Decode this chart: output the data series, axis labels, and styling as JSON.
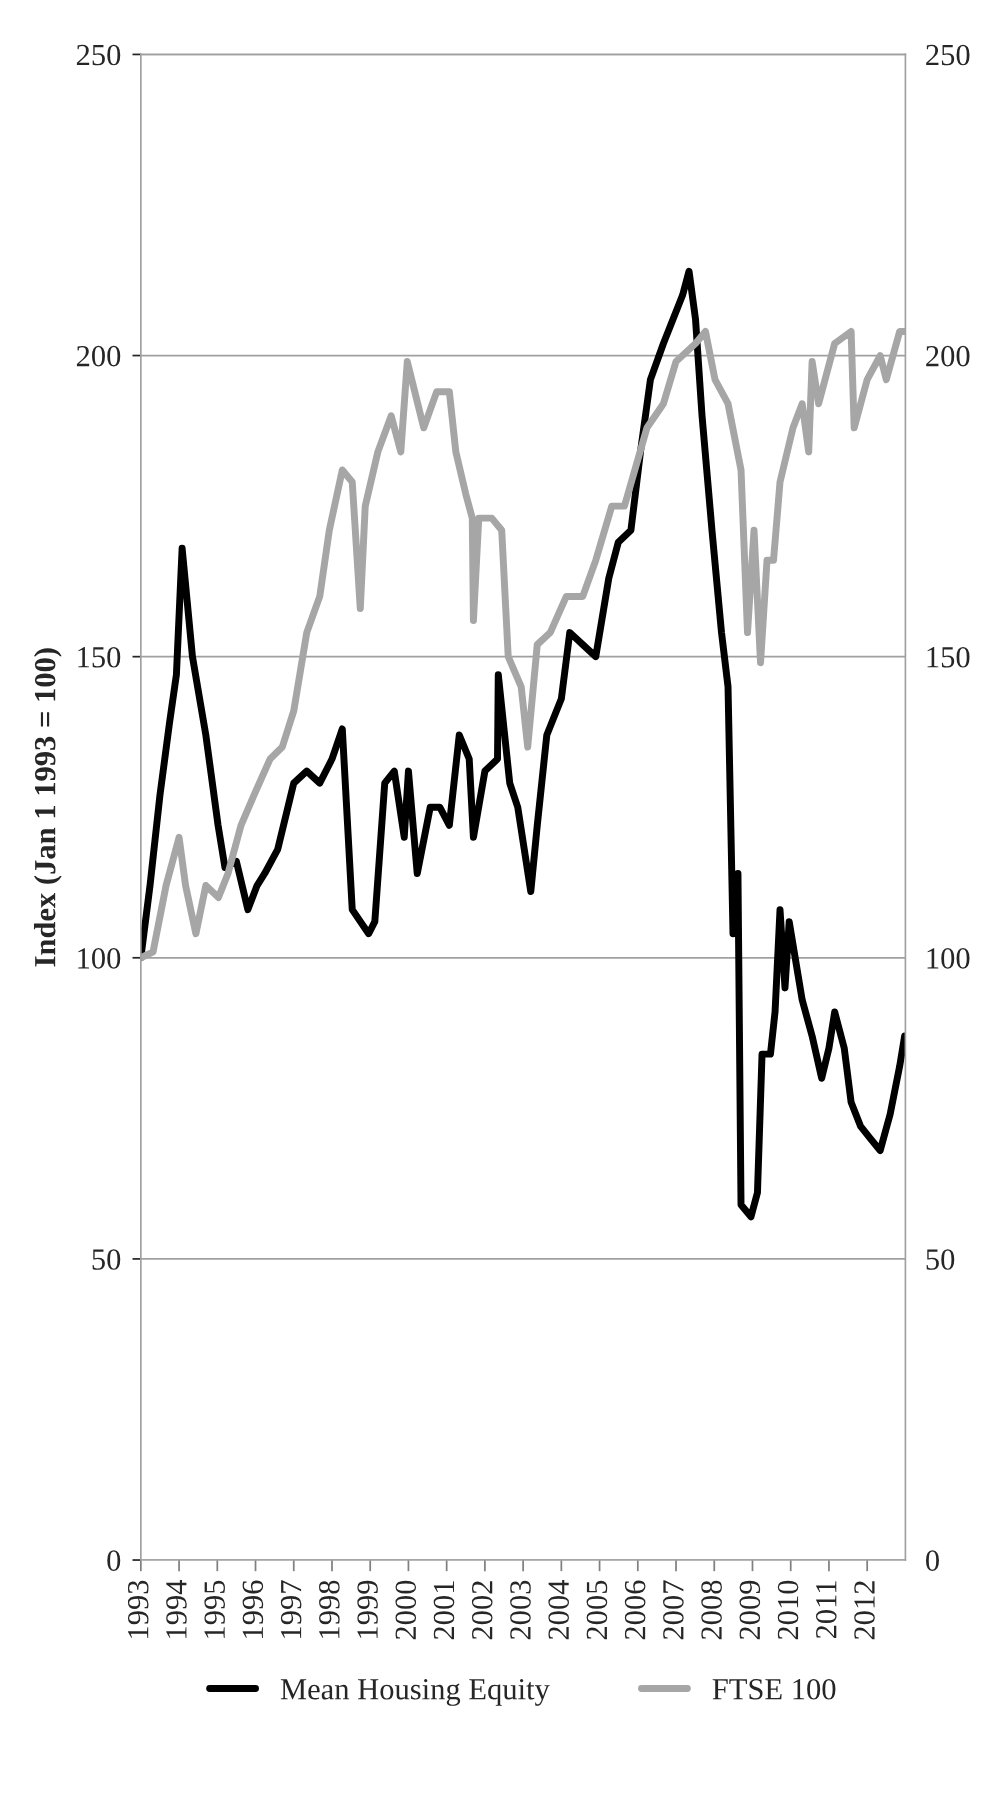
{
  "chart_data": {
    "type": "line",
    "ylabel": "Index (Jan 1 1993 = 100)",
    "xlim": [
      1993,
      2013
    ],
    "xticks": [
      1993,
      1994,
      1995,
      1996,
      1997,
      1998,
      1999,
      2000,
      2001,
      2002,
      2003,
      2004,
      2005,
      2006,
      2007,
      2008,
      2009,
      2010,
      2011,
      2012
    ],
    "ylim": [
      0,
      250
    ],
    "yticks": [
      0,
      50,
      100,
      150,
      200,
      250
    ],
    "y2lim": [
      0,
      250
    ],
    "y2ticks": [
      0,
      50,
      100,
      150,
      200,
      250
    ],
    "grid": "y",
    "legend": "bottom",
    "marker": "none",
    "line_style": "solid",
    "series": [
      {
        "name": "Mean Housing Equity",
        "color": "#000000",
        "x": [
          1993.0,
          1993.24,
          1993.5,
          1993.75,
          1993.93,
          1994.08,
          1994.35,
          1994.7,
          1995.02,
          1995.2,
          1995.5,
          1995.8,
          1996.04,
          1996.24,
          1996.58,
          1997.0,
          1997.34,
          1997.68,
          1998.0,
          1998.27,
          1998.53,
          1998.96,
          1999.12,
          1999.38,
          1999.63,
          1999.89,
          2000.0,
          2000.23,
          2000.57,
          2000.82,
          2001.07,
          2001.33,
          2001.59,
          2001.7,
          2002.0,
          2002.33,
          2002.35,
          2002.65,
          2002.86,
          2003.2,
          2003.37,
          2003.62,
          2004.0,
          2004.22,
          2004.56,
          2004.9,
          2005.24,
          2005.49,
          2005.82,
          2006.07,
          2006.33,
          2006.67,
          2007.17,
          2007.34,
          2007.51,
          2007.68,
          2007.94,
          2008.19,
          2008.36,
          2008.49,
          2008.62,
          2008.7,
          2008.96,
          2009.13,
          2009.25,
          2009.47,
          2009.59,
          2009.72,
          2009.85,
          2009.96,
          2010.3,
          2010.56,
          2010.81,
          2011.0,
          2011.15,
          2011.4,
          2011.58,
          2011.83,
          2012.08,
          2012.34,
          2012.6,
          2012.85,
          2012.98
        ],
        "values": [
          100,
          112,
          127,
          139,
          147,
          168,
          150,
          137,
          122,
          115,
          116,
          108,
          112,
          114,
          118,
          129,
          131,
          129,
          133,
          138,
          108,
          104,
          106,
          129,
          131,
          120,
          131,
          114,
          125,
          125,
          122,
          137,
          133,
          120,
          131,
          133,
          147,
          129,
          125,
          111,
          122,
          137,
          143,
          154,
          152,
          150,
          163,
          169,
          171,
          184,
          196,
          202,
          210,
          214,
          206,
          190,
          171,
          154,
          145,
          104,
          114,
          59,
          57,
          61,
          84,
          84,
          91,
          108,
          95,
          106,
          93,
          87,
          80,
          85,
          91,
          85,
          76,
          72,
          70,
          68,
          74,
          82,
          87
        ]
      },
      {
        "name": "FTSE 100",
        "color": "#a6a6a6",
        "x": [
          1993.0,
          1993.32,
          1993.66,
          1994.0,
          1994.17,
          1994.44,
          1994.7,
          1995.03,
          1995.28,
          1995.62,
          1995.96,
          1996.38,
          1996.7,
          1997.0,
          1997.34,
          1997.68,
          1997.93,
          1998.27,
          1998.53,
          1998.74,
          1998.87,
          1999.2,
          1999.55,
          1999.8,
          1999.97,
          2000.4,
          2000.74,
          2001.07,
          2001.24,
          2001.5,
          2001.67,
          2001.7,
          2001.84,
          2002.18,
          2002.44,
          2002.61,
          2002.95,
          2003.12,
          2003.37,
          2003.71,
          2004.13,
          2004.56,
          2004.9,
          2005.32,
          2005.65,
          2006.24,
          2006.67,
          2007.0,
          2007.51,
          2007.77,
          2008.02,
          2008.36,
          2008.7,
          2008.87,
          2009.04,
          2009.21,
          2009.38,
          2009.55,
          2009.72,
          2010.06,
          2010.3,
          2010.47,
          2010.56,
          2010.73,
          2011.15,
          2011.58,
          2011.66,
          2012.0,
          2012.34,
          2012.5,
          2012.85,
          2012.98
        ],
        "values": [
          100,
          101,
          112,
          120,
          112,
          104,
          112,
          110,
          114,
          122,
          127,
          133,
          135,
          141,
          154,
          160,
          171,
          181,
          179,
          158,
          175,
          184,
          190,
          184,
          199,
          188,
          194,
          194,
          184,
          177,
          173,
          156,
          173,
          173,
          171,
          150,
          145,
          135,
          152,
          154,
          160,
          160,
          166,
          175,
          175,
          188,
          192,
          199,
          202,
          204,
          196,
          192,
          181,
          154,
          171,
          149,
          166,
          166,
          179,
          188,
          192,
          184,
          199,
          192,
          202,
          204,
          188,
          196,
          200,
          196,
          204,
          204
        ]
      }
    ]
  }
}
